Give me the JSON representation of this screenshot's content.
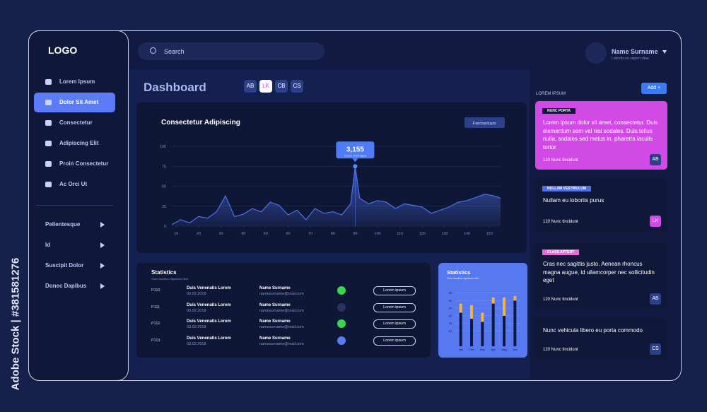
{
  "watermark": "Adobe Stock | #381581276",
  "sidebar": {
    "logo": "LOGO",
    "nav": [
      "Lorem Ipsum",
      "Dolor Sit Amet",
      "Consectetur",
      "Adipiscing Elit",
      "Proin Consectetur",
      "Ac Orci Ut"
    ],
    "active": 1,
    "groups": [
      "Pellentesque",
      "Id",
      "Suscipit Dolor",
      "Donec Dapibus"
    ]
  },
  "header": {
    "search": "Search",
    "user": "Name Surname",
    "user_sub": "Lobortis eu sapien vitae"
  },
  "dashboard": {
    "title": "Dashboard",
    "avatars": [
      "AB",
      "LK",
      "CB",
      "CS"
    ]
  },
  "chart_data": [
    {
      "type": "line",
      "title": "Consectetur Adipiscing",
      "button": "Fermentum",
      "annotation": {
        "text": "3,155",
        "sub": "Cursus id felis ligula"
      },
      "color": "#4f6fe8",
      "x": [
        8,
        12,
        16,
        20,
        24,
        28,
        32,
        36,
        40,
        44,
        48,
        52,
        56,
        60,
        64,
        68,
        72,
        76,
        80,
        84,
        88,
        90,
        92,
        96,
        100,
        104,
        108,
        112,
        116,
        120,
        124,
        128,
        132,
        136,
        140,
        144,
        148,
        152,
        155
      ],
      "values": [
        2,
        8,
        4,
        12,
        10,
        18,
        38,
        12,
        15,
        22,
        18,
        30,
        26,
        14,
        20,
        8,
        22,
        16,
        18,
        14,
        28,
        75,
        35,
        28,
        32,
        30,
        22,
        28,
        26,
        24,
        16,
        20,
        24,
        30,
        32,
        36,
        40,
        38,
        35
      ],
      "xlim": [
        8,
        155
      ],
      "xticks": [
        10,
        20,
        30,
        40,
        50,
        60,
        70,
        80,
        90,
        100,
        110,
        120,
        130,
        140,
        150
      ],
      "ylim": [
        0,
        100
      ],
      "yticks": [
        0,
        25,
        50,
        75,
        100
      ],
      "grid": true
    },
    {
      "type": "bar",
      "stacked": true,
      "title": "Statistics",
      "subtitle": "Nunc faucibus dignissim nibh",
      "categories": [
        "Jan",
        "Feb",
        "Mar",
        "Apr",
        "May",
        "Jun"
      ],
      "series": [
        {
          "color": "#0e1a45",
          "values": [
            22,
            18,
            16,
            28,
            20,
            30
          ]
        },
        {
          "color": "#f0b43a",
          "values": [
            6,
            9,
            6,
            4,
            12,
            3
          ]
        }
      ],
      "ylim": [
        0,
        38
      ],
      "yticks": [
        10,
        15,
        20,
        25,
        30,
        35
      ],
      "grid": true
    }
  ],
  "table": {
    "title": "Statistics",
    "subtitle": "Nunc faucibus dignissim nibh",
    "rows": [
      [
        "P110",
        "Duis Venenatis Lorem",
        "03.02.2018",
        "Name Surname",
        "namesurname@mail.com",
        "#3bd64a",
        "Lorem ipsum"
      ],
      [
        "P111",
        "Duis Venenatis Lorem",
        "03.02.2018",
        "Name Surname",
        "namesurname@mail.com",
        "#26345e",
        "Lorem ipsum"
      ],
      [
        "P112",
        "Duis Venenatis Lorem",
        "03.02.2018",
        "Name Surname",
        "namesurname@mail.com",
        "#3bd64a",
        "Lorem ipsum"
      ],
      [
        "P113",
        "Duis Venenatis Lorem",
        "03.02.2018",
        "Name Surname",
        "namesurname@mail.com",
        "#5a7cf2",
        "Lorem ipsum"
      ]
    ]
  },
  "right": {
    "heading": "LOREM IPSUM",
    "add": "Add +",
    "cards": [
      {
        "tag": "NUNC PORTA",
        "tag_color": "#0f1838",
        "bg": "#d24ae6",
        "text": "Lorem ipsum dolor sit amet, consectetur. Duis elementum sem vel nisi sodales. Duis tellus nulla, sodales sed metus in, pharetra iaculis tortor",
        "footer": "120 Nunc tincidunt",
        "avatar": "AB"
      },
      {
        "tag": "NULLAM VESTIBULUM",
        "tag_color": "#4f6fe8",
        "bg": "#0f1838",
        "text": "Nullam eu lobortis purus",
        "footer": "120 Nunc tincidunt",
        "avatar": "LK"
      },
      {
        "tag": "CLASS APTENT",
        "tag_color": "#e86bd6",
        "bg": "#0f1838",
        "text": "Cras nec sagittis justo. Aenean rhoncus magna augue, id ullamcorper nec sollicitudin eget",
        "footer": "120 Nunc tincidunt",
        "avatar": "AB"
      },
      {
        "text": "Nunc vehicula libero eu porta commodo",
        "bg": "#0f1838",
        "footer": "120 Nunc tincidunt",
        "avatar": "CS"
      }
    ]
  }
}
